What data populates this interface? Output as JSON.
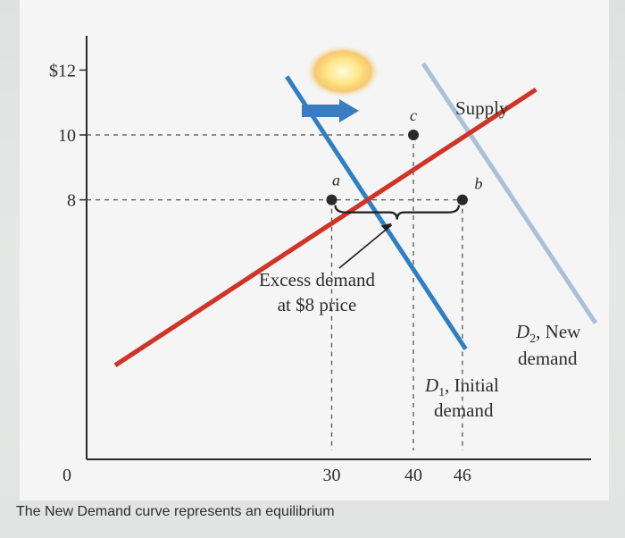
{
  "chart_data": {
    "type": "line",
    "xlim": [
      0,
      70
    ],
    "ylim": [
      0,
      13
    ],
    "y_ticks": [
      {
        "value": 12,
        "label": "$12"
      },
      {
        "value": 10,
        "label": "10"
      },
      {
        "value": 8,
        "label": "8"
      }
    ],
    "x_ticks": [
      {
        "value": 0,
        "label": "0"
      },
      {
        "value": 30,
        "label": "30"
      },
      {
        "value": 40,
        "label": "40"
      },
      {
        "value": 46,
        "label": "46"
      }
    ],
    "series": [
      {
        "name": "Supply",
        "color": "#cf3427",
        "x": [
          3.5,
          55
        ],
        "y": [
          2.9,
          11.4
        ]
      },
      {
        "name": "D1, Initial demand",
        "color": "#2f7fc2",
        "x": [
          24.5,
          46.4
        ],
        "y": [
          11.8,
          3.4
        ]
      },
      {
        "name": "D2, New demand",
        "color": "#a9c1d8",
        "x": [
          41.2,
          62.3
        ],
        "y": [
          12.2,
          4.2
        ]
      }
    ],
    "points": [
      {
        "label": "a",
        "x": 30,
        "y": 8
      },
      {
        "label": "c",
        "x": 40,
        "y": 10
      },
      {
        "label": "b",
        "x": 46,
        "y": 8
      }
    ],
    "series_labels": {
      "supply": "Supply",
      "d1_name": "D",
      "d1_sub": "1",
      "d1_line1_rest": ", Initial",
      "d1_line2": "demand",
      "d2_name": "D",
      "d2_sub": "2",
      "d2_line1_rest": ", New",
      "d2_line2": "demand"
    },
    "annotation": {
      "line1": "Excess demand",
      "line2": "at $8 price"
    },
    "colors": {
      "shift_arrow": "#3a7cc0",
      "point": "#2a2a2a"
    }
  },
  "caption": "The New Demand curve represents an equilibrium"
}
